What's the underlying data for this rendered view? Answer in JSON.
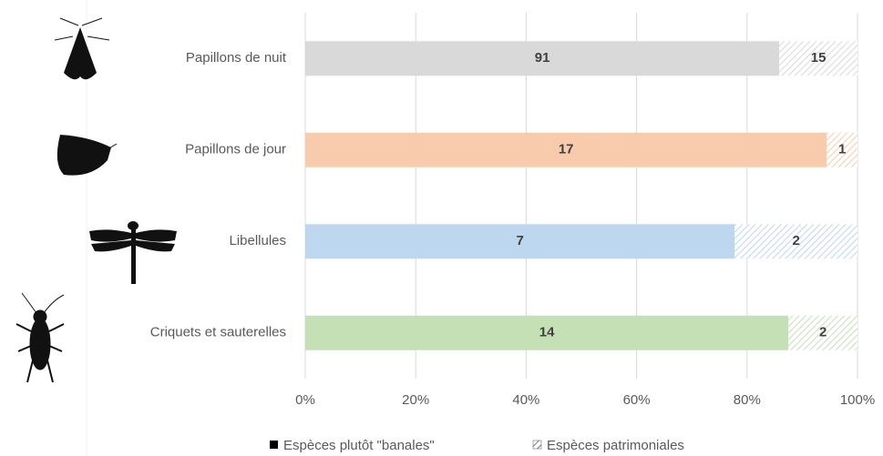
{
  "chart_data": {
    "type": "bar",
    "orientation": "horizontal",
    "stacking": "percent",
    "categories": [
      "Papillons de nuit",
      "Papillons de jour",
      "Libellules",
      "Criquets et sauterelles"
    ],
    "colors": [
      "#d9d9d9",
      "#f8cbad",
      "#bdd7ee",
      "#c5e0b4"
    ],
    "series": [
      {
        "name": "Espèces plutôt \"banales\"",
        "color": "#000000",
        "values": [
          91,
          17,
          7,
          14
        ]
      },
      {
        "name": "Espèces patrimoniales",
        "pattern": "hatch",
        "values": [
          15,
          1,
          2,
          2
        ]
      }
    ],
    "xlim": [
      0,
      100
    ],
    "xticks": [
      {
        "value": 0,
        "label": "0%"
      },
      {
        "value": 20,
        "label": "20%"
      },
      {
        "value": 40,
        "label": "40%"
      },
      {
        "value": 60,
        "label": "60%"
      },
      {
        "value": 80,
        "label": "80%"
      },
      {
        "value": 100,
        "label": "100%"
      }
    ],
    "grid": true,
    "legend": "bottom"
  }
}
